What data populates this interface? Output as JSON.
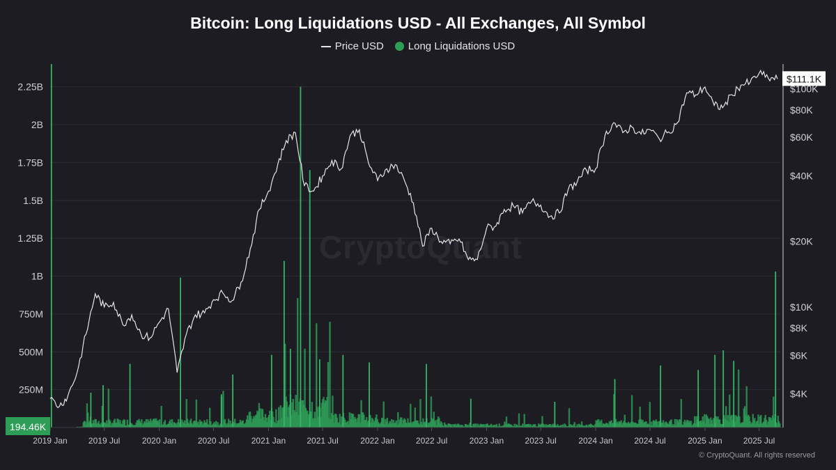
{
  "chart_data": {
    "type": "bar+line",
    "title": "Bitcoin: Long Liquidations USD - All Exchanges, All Symbol",
    "legend": [
      {
        "name": "Price USD",
        "kind": "line",
        "color": "#e6e6e6"
      },
      {
        "name": "Long Liquidations USD",
        "kind": "dot",
        "color": "#2e9e57"
      }
    ],
    "x_axis": {
      "ticks": [
        "2019 Jan",
        "2019 Jul",
        "2020 Jan",
        "2020 Jul",
        "2021 Jan",
        "2021 Jul",
        "2022 Jan",
        "2022 Jul",
        "2023 Jan",
        "2023 Jul",
        "2024 Jan",
        "2024 Jul",
        "2025 Jan",
        "2025 Jul"
      ],
      "range": [
        "2019-01",
        "2025-09"
      ]
    },
    "y_left": {
      "label": "Long Liquidations USD",
      "ticks": [
        {
          "v": 250,
          "t": "250M"
        },
        {
          "v": 500,
          "t": "500M"
        },
        {
          "v": 750,
          "t": "750M"
        },
        {
          "v": 1000,
          "t": "1B"
        },
        {
          "v": 1250,
          "t": "1.25B"
        },
        {
          "v": 1500,
          "t": "1.5B"
        },
        {
          "v": 1750,
          "t": "1.75B"
        },
        {
          "v": 2000,
          "t": "2B"
        },
        {
          "v": 2250,
          "t": "2.25B"
        }
      ],
      "unit": "millions USD",
      "range": [
        0,
        2400
      ]
    },
    "y_right": {
      "label": "Price USD",
      "scale": "log",
      "ticks": [
        {
          "v": 4000,
          "t": "$4K"
        },
        {
          "v": 6000,
          "t": "$6K"
        },
        {
          "v": 8000,
          "t": "$8K"
        },
        {
          "v": 10000,
          "t": "$10K"
        },
        {
          "v": 20000,
          "t": "$20K"
        },
        {
          "v": 40000,
          "t": "$40K"
        },
        {
          "v": 60000,
          "t": "$60K"
        },
        {
          "v": 80000,
          "t": "$80K"
        },
        {
          "v": 100000,
          "t": "$100K"
        }
      ],
      "range": [
        2800,
        130000
      ]
    },
    "current_price_label": "$111.1K",
    "current_liq_label": "194.46K",
    "price_series": [
      [
        "2019-01-01",
        3800
      ],
      [
        "2019-02-01",
        3500
      ],
      [
        "2019-03-01",
        3900
      ],
      [
        "2019-04-01",
        5000
      ],
      [
        "2019-05-01",
        7500
      ],
      [
        "2019-06-01",
        11500
      ],
      [
        "2019-07-01",
        10000
      ],
      [
        "2019-08-01",
        10500
      ],
      [
        "2019-09-01",
        8300
      ],
      [
        "2019-10-01",
        9200
      ],
      [
        "2019-11-01",
        7500
      ],
      [
        "2019-12-01",
        7200
      ],
      [
        "2020-01-01",
        8500
      ],
      [
        "2020-02-01",
        9800
      ],
      [
        "2020-03-01",
        5000
      ],
      [
        "2020-04-01",
        7500
      ],
      [
        "2020-05-01",
        9200
      ],
      [
        "2020-06-01",
        9400
      ],
      [
        "2020-07-01",
        10800
      ],
      [
        "2020-08-01",
        11600
      ],
      [
        "2020-09-01",
        10700
      ],
      [
        "2020-10-01",
        13000
      ],
      [
        "2020-11-01",
        18500
      ],
      [
        "2020-12-01",
        28000
      ],
      [
        "2021-01-01",
        34000
      ],
      [
        "2021-02-01",
        45000
      ],
      [
        "2021-03-01",
        58000
      ],
      [
        "2021-04-01",
        63000
      ],
      [
        "2021-05-01",
        36000
      ],
      [
        "2021-06-01",
        34000
      ],
      [
        "2021-07-01",
        40000
      ],
      [
        "2021-08-01",
        47000
      ],
      [
        "2021-09-01",
        43000
      ],
      [
        "2021-10-01",
        61000
      ],
      [
        "2021-11-01",
        65000
      ],
      [
        "2021-12-01",
        46000
      ],
      [
        "2022-01-01",
        38000
      ],
      [
        "2022-02-01",
        43000
      ],
      [
        "2022-03-01",
        45000
      ],
      [
        "2022-04-01",
        38000
      ],
      [
        "2022-05-01",
        30000
      ],
      [
        "2022-06-01",
        19000
      ],
      [
        "2022-07-01",
        23000
      ],
      [
        "2022-08-01",
        20000
      ],
      [
        "2022-09-01",
        19500
      ],
      [
        "2022-10-01",
        20500
      ],
      [
        "2022-11-01",
        16500
      ],
      [
        "2022-12-01",
        16500
      ],
      [
        "2023-01-01",
        23000
      ],
      [
        "2023-02-01",
        23500
      ],
      [
        "2023-03-01",
        28000
      ],
      [
        "2023-04-01",
        29000
      ],
      [
        "2023-05-01",
        27000
      ],
      [
        "2023-06-01",
        30500
      ],
      [
        "2023-07-01",
        29300
      ],
      [
        "2023-08-01",
        26000
      ],
      [
        "2023-09-01",
        27000
      ],
      [
        "2023-10-01",
        34500
      ],
      [
        "2023-11-01",
        37700
      ],
      [
        "2023-12-01",
        42500
      ],
      [
        "2024-01-01",
        43000
      ],
      [
        "2024-02-01",
        61000
      ],
      [
        "2024-03-01",
        70000
      ],
      [
        "2024-04-01",
        63000
      ],
      [
        "2024-05-01",
        67000
      ],
      [
        "2024-06-01",
        62000
      ],
      [
        "2024-07-01",
        65000
      ],
      [
        "2024-08-01",
        59000
      ],
      [
        "2024-09-01",
        63500
      ],
      [
        "2024-10-01",
        70000
      ],
      [
        "2024-11-01",
        96000
      ],
      [
        "2024-12-01",
        94000
      ],
      [
        "2025-01-01",
        102000
      ],
      [
        "2025-02-01",
        84000
      ],
      [
        "2025-03-01",
        82000
      ],
      [
        "2025-04-01",
        94000
      ],
      [
        "2025-05-01",
        104000
      ],
      [
        "2025-06-01",
        107000
      ],
      [
        "2025-07-01",
        118000
      ],
      [
        "2025-08-01",
        112000
      ],
      [
        "2025-09-01",
        111100
      ]
    ],
    "liquidation_spikes": [
      [
        "2019-01-05",
        2400
      ],
      [
        "2019-05-17",
        230
      ],
      [
        "2019-06-27",
        280
      ],
      [
        "2019-09-25",
        420
      ],
      [
        "2020-03-12",
        990
      ],
      [
        "2020-07-27",
        220
      ],
      [
        "2020-09-03",
        350
      ],
      [
        "2021-01-11",
        480
      ],
      [
        "2021-02-22",
        1100
      ],
      [
        "2021-03-15",
        520
      ],
      [
        "2021-04-18",
        2250
      ],
      [
        "2021-05-19",
        1700
      ],
      [
        "2021-06-21",
        450
      ],
      [
        "2021-09-07",
        480
      ],
      [
        "2021-12-04",
        430
      ],
      [
        "2022-06-13",
        420
      ],
      [
        "2022-11-09",
        190
      ],
      [
        "2023-08-17",
        170
      ],
      [
        "2024-03-05",
        320
      ],
      [
        "2024-08-05",
        410
      ],
      [
        "2024-12-09",
        380
      ],
      [
        "2025-02-03",
        480
      ],
      [
        "2025-03-03",
        510
      ],
      [
        "2025-04-07",
        440
      ],
      [
        "2025-08-25",
        1030
      ]
    ]
  }
}
